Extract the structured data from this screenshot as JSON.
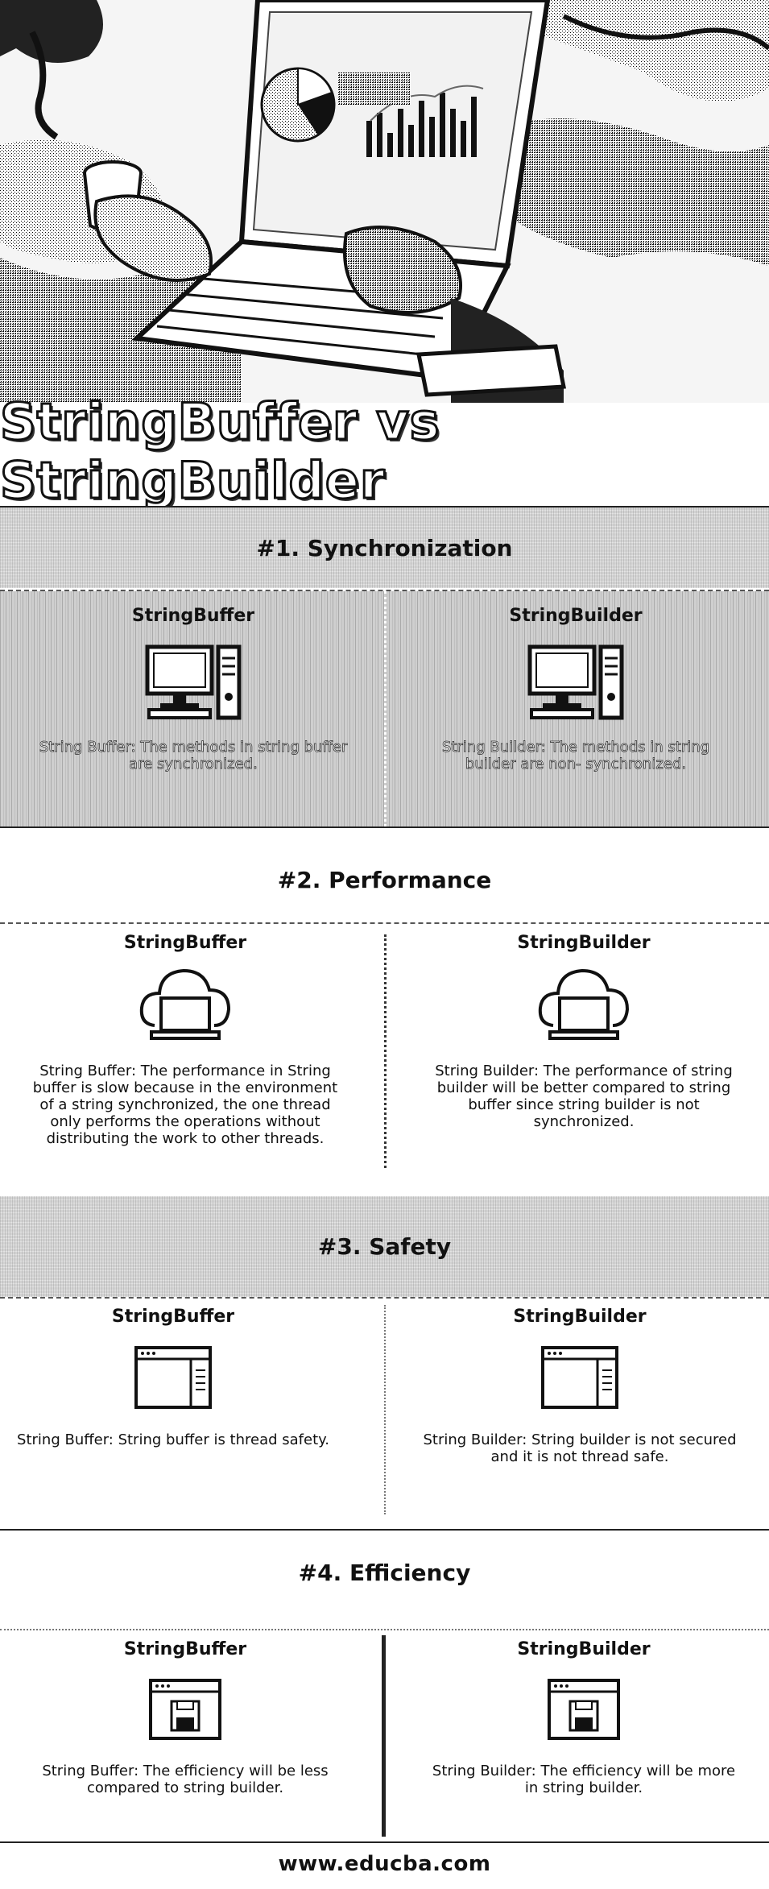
{
  "title": "StringBuffer vs StringBuilder",
  "sections": [
    {
      "heading": "#1. Synchronization",
      "left": {
        "title": "StringBuffer",
        "icon": "desktop-computer-icon",
        "text": "String Buffer: The methods in string buffer are synchronized."
      },
      "right": {
        "title": "StringBuilder",
        "icon": "desktop-computer-icon",
        "text": "String Builder: The methods in string builder are non- synchronized."
      }
    },
    {
      "heading": "#2. Performance",
      "left": {
        "title": "StringBuffer",
        "icon": "cloud-laptop-icon",
        "text": "String Buffer: The performance in String buffer is slow because in the environment of a string synchronized, the one thread only performs the operations without distributing the work to other threads."
      },
      "right": {
        "title": "StringBuilder",
        "icon": "cloud-laptop-icon",
        "text": "String Builder: The performance of string builder will be better compared to string buffer since string builder is not synchronized."
      }
    },
    {
      "heading": "#3. Safety",
      "left": {
        "title": "StringBuffer",
        "icon": "browser-window-icon",
        "text": "String Buffer: String buffer is thread safety."
      },
      "right": {
        "title": "StringBuilder",
        "icon": "browser-window-icon",
        "text": "String Builder: String builder is not secured and it is not thread safe."
      }
    },
    {
      "heading": "#4. Efficiency",
      "left": {
        "title": "StringBuffer",
        "icon": "window-save-icon",
        "text": "String Buffer: The efficiency will be less compared to string builder."
      },
      "right": {
        "title": "StringBuilder",
        "icon": "window-save-icon",
        "text": "String Builder: The efficiency will be more in string builder."
      }
    }
  ],
  "footer": "www.educba.com"
}
